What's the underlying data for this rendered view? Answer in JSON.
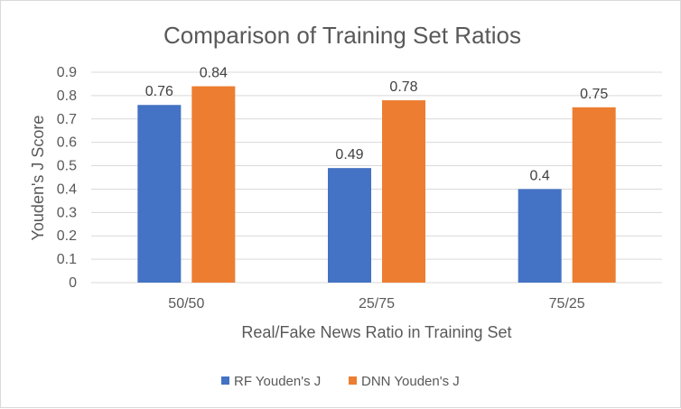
{
  "chart_data": {
    "type": "bar",
    "title": "Comparison of Training Set Ratios",
    "xlabel": "Real/Fake News Ratio in Training Set",
    "ylabel": "Youden's J Score",
    "categories": [
      "50/50",
      "25/75",
      "75/25"
    ],
    "series": [
      {
        "name": "RF Youden's J",
        "values": [
          0.76,
          0.49,
          0.4
        ],
        "color": "#4472c4"
      },
      {
        "name": "DNN Youden's J",
        "values": [
          0.84,
          0.78,
          0.75
        ],
        "color": "#ed7d31"
      }
    ],
    "ylim": [
      0,
      0.9
    ],
    "yticks": [
      "0",
      "0.1",
      "0.2",
      "0.3",
      "0.4",
      "0.5",
      "0.6",
      "0.7",
      "0.8",
      "0.9"
    ],
    "grid": true,
    "legend": "bottom-center"
  }
}
